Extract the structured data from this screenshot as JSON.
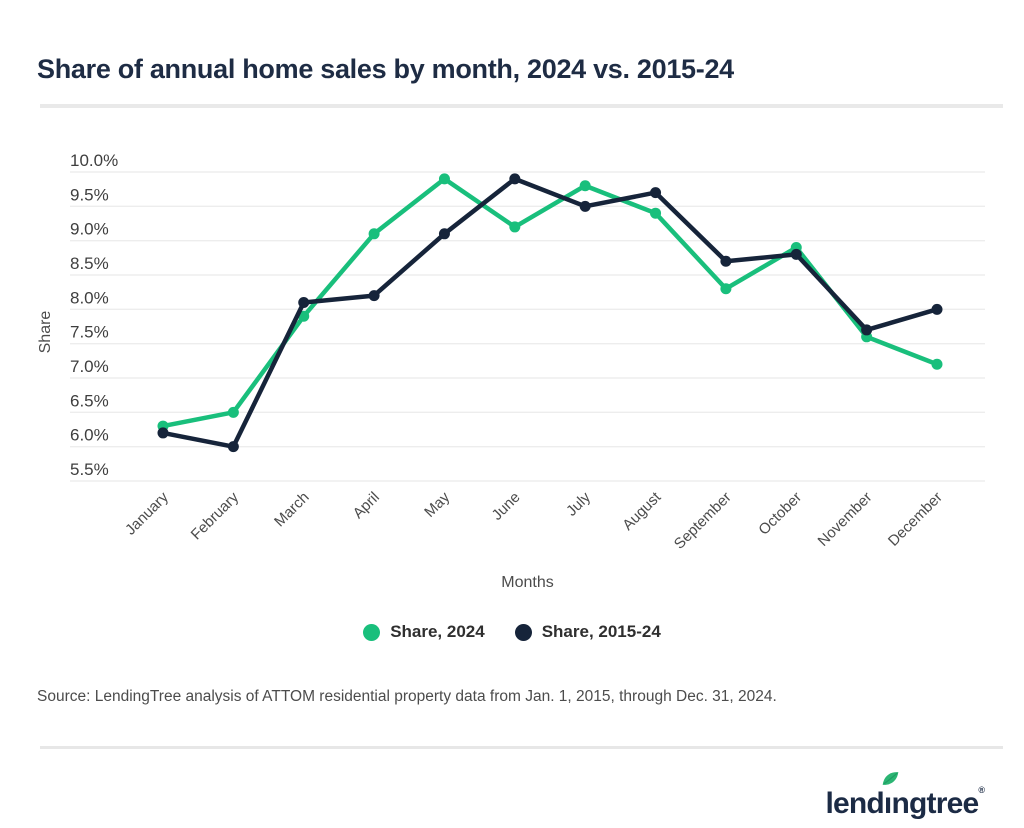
{
  "title": "Share of annual home sales by month, 2024 vs. 2015-24",
  "chart_data": {
    "type": "line",
    "categories": [
      "January",
      "February",
      "March",
      "April",
      "May",
      "June",
      "July",
      "August",
      "September",
      "October",
      "November",
      "December"
    ],
    "series": [
      {
        "name": "Share, 2024",
        "color": "#19bf7c",
        "values": [
          6.3,
          6.5,
          7.9,
          9.1,
          9.9,
          9.2,
          9.8,
          9.4,
          8.3,
          8.9,
          7.6,
          7.2
        ]
      },
      {
        "name": "Share, 2015-24",
        "color": "#16243a",
        "values": [
          6.2,
          6.0,
          8.1,
          8.2,
          9.1,
          9.9,
          9.5,
          9.7,
          8.7,
          8.8,
          7.7,
          8.0
        ]
      }
    ],
    "xlabel": "Months",
    "ylabel": "Share",
    "ylim": [
      5.5,
      10.0
    ],
    "ytick_step": 0.5,
    "ytick_format": "one_decimal_percent",
    "grid": true,
    "legend_position": "bottom"
  },
  "source": "Source: LendingTree analysis of ATTOM residential property data from Jan. 1, 2015, through Dec. 31, 2024.",
  "logo": {
    "part1": "lend",
    "dotless_i": "ı",
    "part2": "ngtree",
    "registered": "®",
    "leaf_color": "#2bb573",
    "leaf_vein_color": "#1f9e63"
  },
  "colors": {
    "title": "#1e2c44",
    "gridline": "#ededed",
    "tick_label": "#3e3e3e",
    "axis_title": "#4c4c4c",
    "x_label": "#4c4c4c",
    "divider": "#e9e9e9"
  }
}
